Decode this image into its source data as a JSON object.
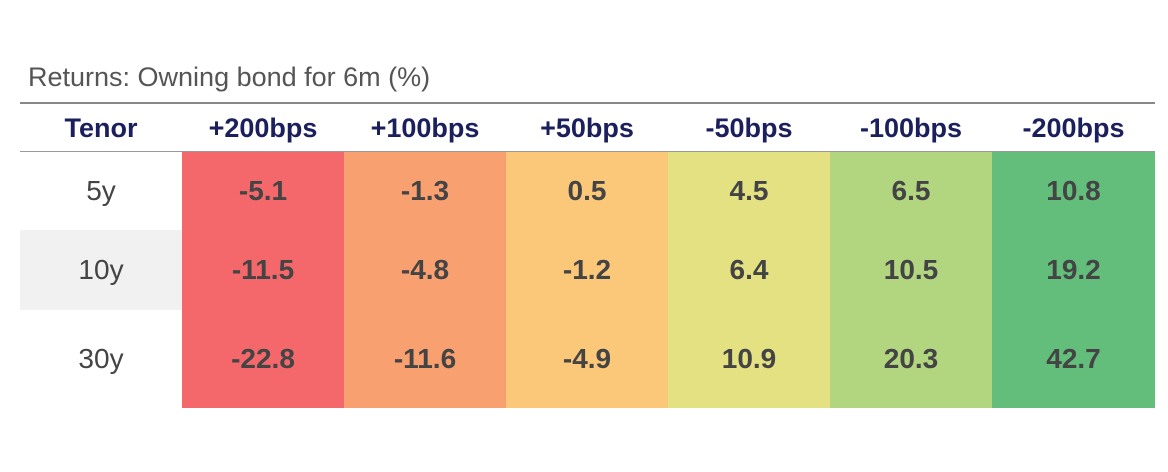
{
  "title": "Returns: Owning bond for 6m (%)",
  "table": {
    "header": [
      "Tenor",
      "+200bps",
      "+100bps",
      "+50bps",
      "-50bps",
      "-100bps",
      "-200bps"
    ],
    "rows": [
      [
        "5y",
        -5.1,
        -1.3,
        0.5,
        4.5,
        6.5,
        10.8
      ],
      [
        "10y",
        -11.5,
        -4.8,
        -1.2,
        6.4,
        10.5,
        19.2
      ],
      [
        "30y",
        -22.8,
        -11.6,
        -4.9,
        10.9,
        20.3,
        42.7
      ]
    ]
  }
}
